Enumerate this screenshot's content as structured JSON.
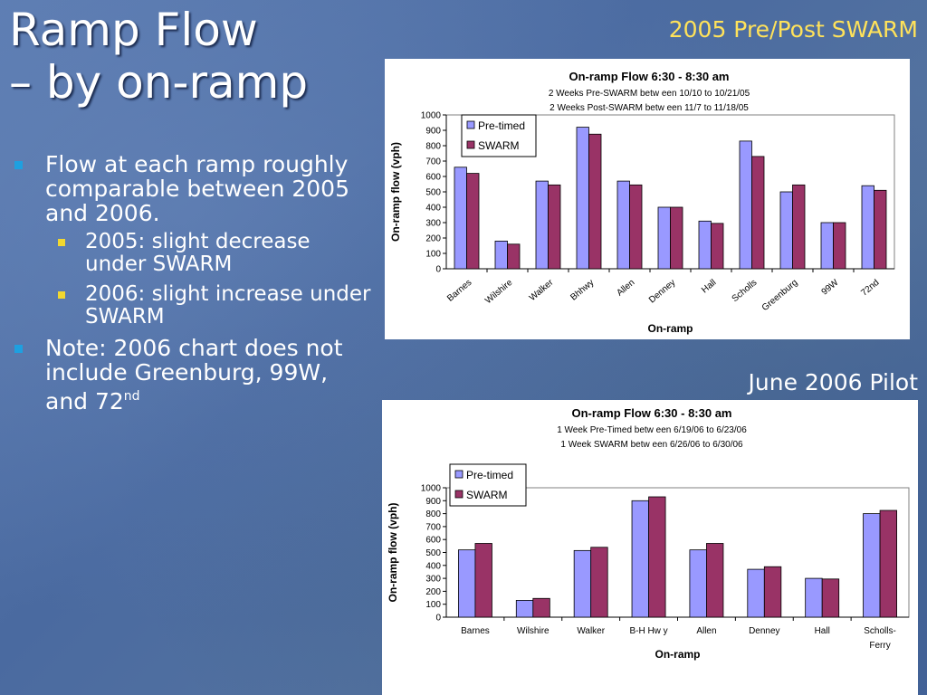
{
  "slide": {
    "title_line1": "Ramp Flow",
    "title_line2": "– by on-ramp",
    "label_2005": "2005 Pre/Post SWARM",
    "label_2006": "June 2006 Pilot",
    "bullets": [
      {
        "text": "Flow at each ramp roughly comparable between 2005 and 2006.",
        "sub": [
          "2005: slight decrease under SWARM",
          "2006: slight increase under SWARM"
        ]
      },
      {
        "text_main": "Note: 2006 chart does not include Greenburg, 99W, and 72",
        "text_sup": "nd"
      }
    ]
  },
  "colors": {
    "pretimed": "#9999ff",
    "swarm": "#993366"
  },
  "chart_data": [
    {
      "type": "bar",
      "title": "On-ramp Flow 6:30 - 8:30 am",
      "subtitle_lines": [
        "2 Weeks Pre-SWARM betw een 10/10 to 10/21/05",
        "2 Weeks Post-SWARM betw een 11/7 to 11/18/05"
      ],
      "xlabel": "On-ramp",
      "ylabel": "On-ramp flow (vph)",
      "ylim": [
        0,
        1000
      ],
      "yticks": [
        0,
        100,
        200,
        300,
        400,
        500,
        600,
        700,
        800,
        900,
        1000
      ],
      "grid": false,
      "legend_position": "top-left",
      "categories": [
        "Barnes",
        "Wilshire",
        "Walker",
        "Bhhwy",
        "Allen",
        "Denney",
        "Hall",
        "Scholls",
        "Greenburg",
        "99W",
        "72nd"
      ],
      "series": [
        {
          "name": "Pre-timed",
          "values": [
            660,
            180,
            570,
            920,
            570,
            400,
            310,
            830,
            500,
            300,
            540
          ]
        },
        {
          "name": "SWARM",
          "values": [
            620,
            160,
            545,
            875,
            545,
            400,
            295,
            730,
            545,
            300,
            510
          ]
        }
      ]
    },
    {
      "type": "bar",
      "title": "On-ramp Flow 6:30 - 8:30 am",
      "subtitle_lines": [
        "1 Week Pre-Timed betw een 6/19/06 to 6/23/06",
        "1 Week SWARM betw een 6/26/06 to 6/30/06"
      ],
      "xlabel": "On-ramp",
      "ylabel": "On-ramp flow (vph)",
      "ylim": [
        0,
        1000
      ],
      "yticks": [
        0,
        100,
        200,
        300,
        400,
        500,
        600,
        700,
        800,
        900,
        1000
      ],
      "grid": false,
      "legend_position": "top-left",
      "categories": [
        "Barnes",
        "Wilshire",
        "Walker",
        "B-H Hw y",
        "Allen",
        "Denney",
        "Hall",
        "Scholls-Ferry"
      ],
      "series": [
        {
          "name": "Pre-timed",
          "values": [
            520,
            130,
            515,
            900,
            520,
            370,
            300,
            800
          ]
        },
        {
          "name": "SWARM",
          "values": [
            570,
            145,
            540,
            930,
            570,
            390,
            295,
            825
          ]
        }
      ]
    }
  ]
}
